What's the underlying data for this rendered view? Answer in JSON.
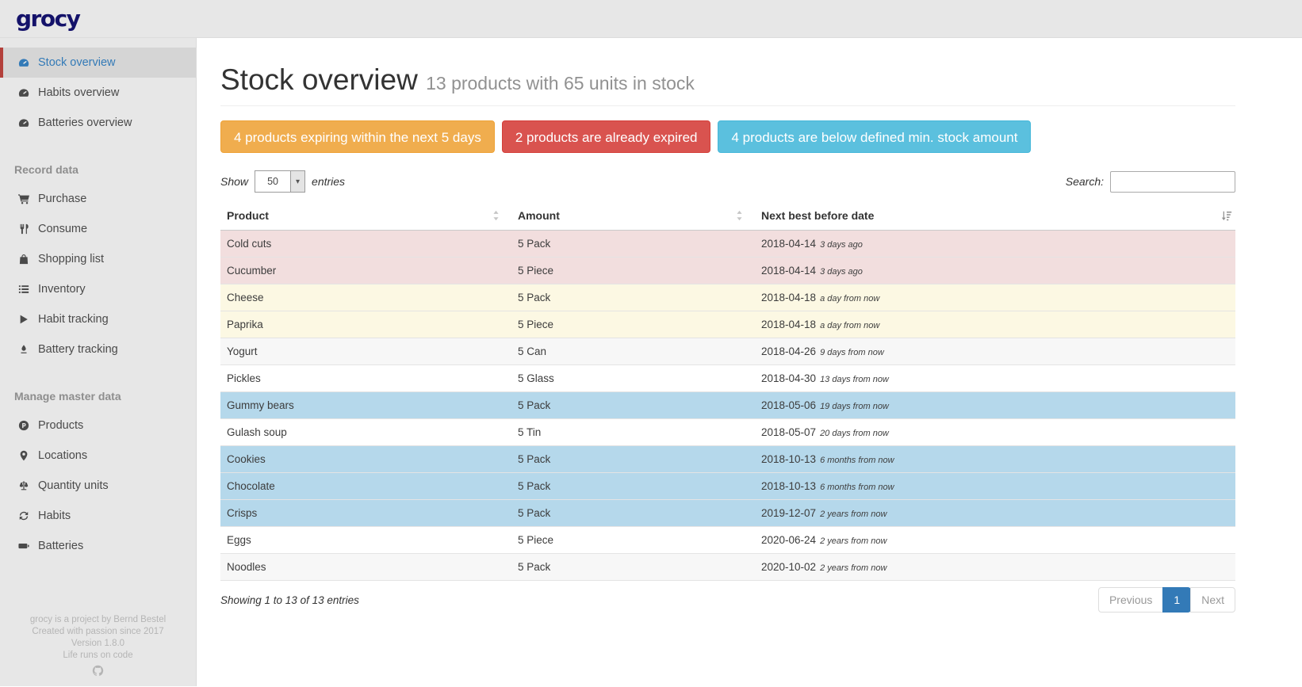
{
  "app": {
    "logo": "grocy"
  },
  "colors": {
    "accent_blue": "#337ab7",
    "alert_warning": "#f0ad4e",
    "alert_danger": "#d9534f",
    "alert_info": "#5bc0de",
    "row_expired": "#f2dede",
    "row_expiring": "#fcf8e3",
    "row_below_min": "#b5d8eb",
    "sidebar_active_border": "#b3403b"
  },
  "sidebar": {
    "groups": [
      {
        "header": null,
        "items": [
          {
            "label": "Stock overview",
            "icon": "tachometer-icon",
            "active": true
          },
          {
            "label": "Habits overview",
            "icon": "tachometer-icon",
            "active": false
          },
          {
            "label": "Batteries overview",
            "icon": "tachometer-icon",
            "active": false
          }
        ]
      },
      {
        "header": "Record data",
        "items": [
          {
            "label": "Purchase",
            "icon": "shopping-cart-icon",
            "active": false
          },
          {
            "label": "Consume",
            "icon": "utensils-icon",
            "active": false
          },
          {
            "label": "Shopping list",
            "icon": "shopping-bag-icon",
            "active": false
          },
          {
            "label": "Inventory",
            "icon": "list-icon",
            "active": false
          },
          {
            "label": "Habit tracking",
            "icon": "play-icon",
            "active": false
          },
          {
            "label": "Battery tracking",
            "icon": "pen-nib-icon",
            "active": false
          }
        ]
      },
      {
        "header": "Manage master data",
        "items": [
          {
            "label": "Products",
            "icon": "product-circle-icon",
            "active": false
          },
          {
            "label": "Locations",
            "icon": "map-marker-icon",
            "active": false
          },
          {
            "label": "Quantity units",
            "icon": "balance-scale-icon",
            "active": false
          },
          {
            "label": "Habits",
            "icon": "sync-icon",
            "active": false
          },
          {
            "label": "Batteries",
            "icon": "battery-icon",
            "active": false
          }
        ]
      }
    ],
    "footer": {
      "lines": [
        "grocy is a project by Bernd Bestel",
        "Created with passion since 2017",
        "Version 1.8.0",
        "Life runs on code"
      ],
      "icon": "github-icon"
    }
  },
  "main": {
    "title": "Stock overview",
    "subtitle": "13 products with 65 units in stock",
    "alerts": [
      {
        "text": "4 products expiring within the next 5 days",
        "type": "warning"
      },
      {
        "text": "2 products are already expired",
        "type": "danger"
      },
      {
        "text": "4 products are below defined min. stock amount",
        "type": "info"
      }
    ],
    "controls": {
      "show_label": "Show",
      "page_length": "50",
      "entries_label": "entries",
      "search_label": "Search:",
      "search_value": ""
    },
    "table": {
      "headers": [
        "Product",
        "Amount",
        "Next best before date"
      ],
      "rows": [
        {
          "product": "Cold cuts",
          "amount": "5 Pack",
          "date": "2018-04-14",
          "relative": "3 days ago",
          "status": "expired"
        },
        {
          "product": "Cucumber",
          "amount": "5 Piece",
          "date": "2018-04-14",
          "relative": "3 days ago",
          "status": "expired"
        },
        {
          "product": "Cheese",
          "amount": "5 Pack",
          "date": "2018-04-18",
          "relative": "a day from now",
          "status": "expiring"
        },
        {
          "product": "Paprika",
          "amount": "5 Piece",
          "date": "2018-04-18",
          "relative": "a day from now",
          "status": "expiring"
        },
        {
          "product": "Yogurt",
          "amount": "5 Can",
          "date": "2018-04-26",
          "relative": "9 days from now",
          "status": "none"
        },
        {
          "product": "Pickles",
          "amount": "5 Glass",
          "date": "2018-04-30",
          "relative": "13 days from now",
          "status": "none"
        },
        {
          "product": "Gummy bears",
          "amount": "5 Pack",
          "date": "2018-05-06",
          "relative": "19 days from now",
          "status": "belowmin"
        },
        {
          "product": "Gulash soup",
          "amount": "5 Tin",
          "date": "2018-05-07",
          "relative": "20 days from now",
          "status": "none"
        },
        {
          "product": "Cookies",
          "amount": "5 Pack",
          "date": "2018-10-13",
          "relative": "6 months from now",
          "status": "belowmin"
        },
        {
          "product": "Chocolate",
          "amount": "5 Pack",
          "date": "2018-10-13",
          "relative": "6 months from now",
          "status": "belowmin"
        },
        {
          "product": "Crisps",
          "amount": "5 Pack",
          "date": "2019-12-07",
          "relative": "2 years from now",
          "status": "belowmin"
        },
        {
          "product": "Eggs",
          "amount": "5 Piece",
          "date": "2020-06-24",
          "relative": "2 years from now",
          "status": "none"
        },
        {
          "product": "Noodles",
          "amount": "5 Pack",
          "date": "2020-10-02",
          "relative": "2 years from now",
          "status": "none"
        }
      ]
    },
    "table_footer": {
      "info": "Showing 1 to 13 of 13 entries",
      "pagination": {
        "previous": "Previous",
        "pages": [
          "1"
        ],
        "active_page": "1",
        "next": "Next"
      }
    }
  }
}
